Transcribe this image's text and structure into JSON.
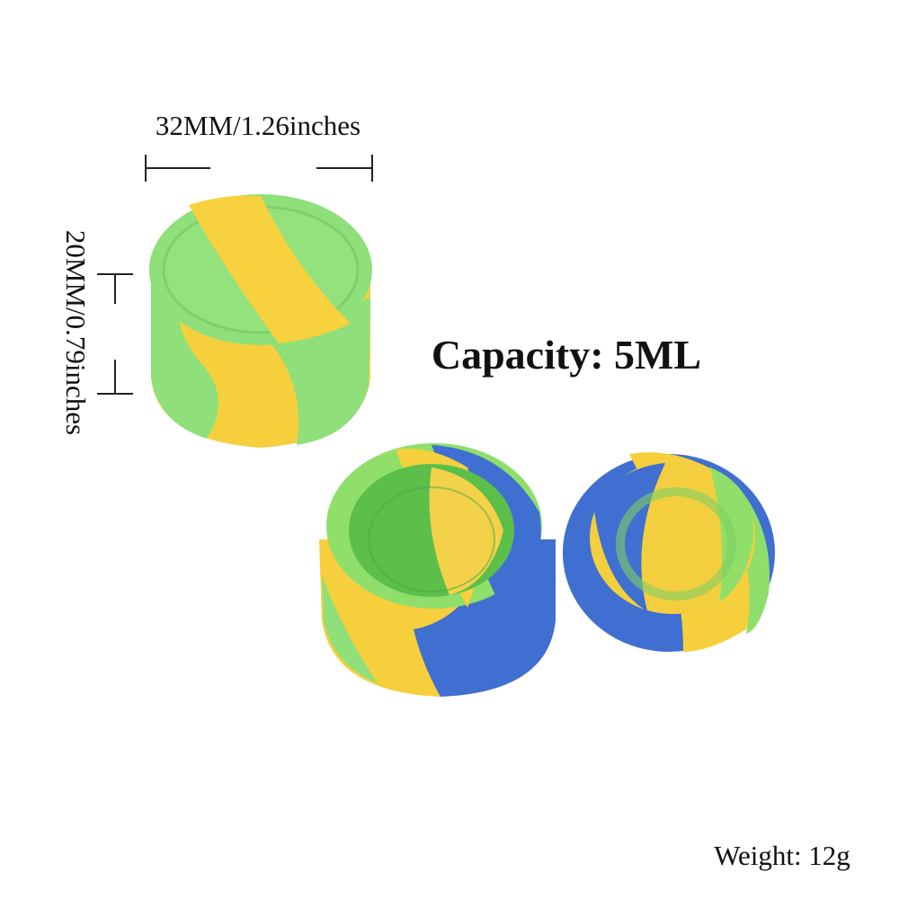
{
  "dimensions": {
    "width": "32MM/1.26inches",
    "height": "20MM/0.79inches"
  },
  "capacity": "Capacity: 5ML",
  "weight": "Weight: 12g"
}
